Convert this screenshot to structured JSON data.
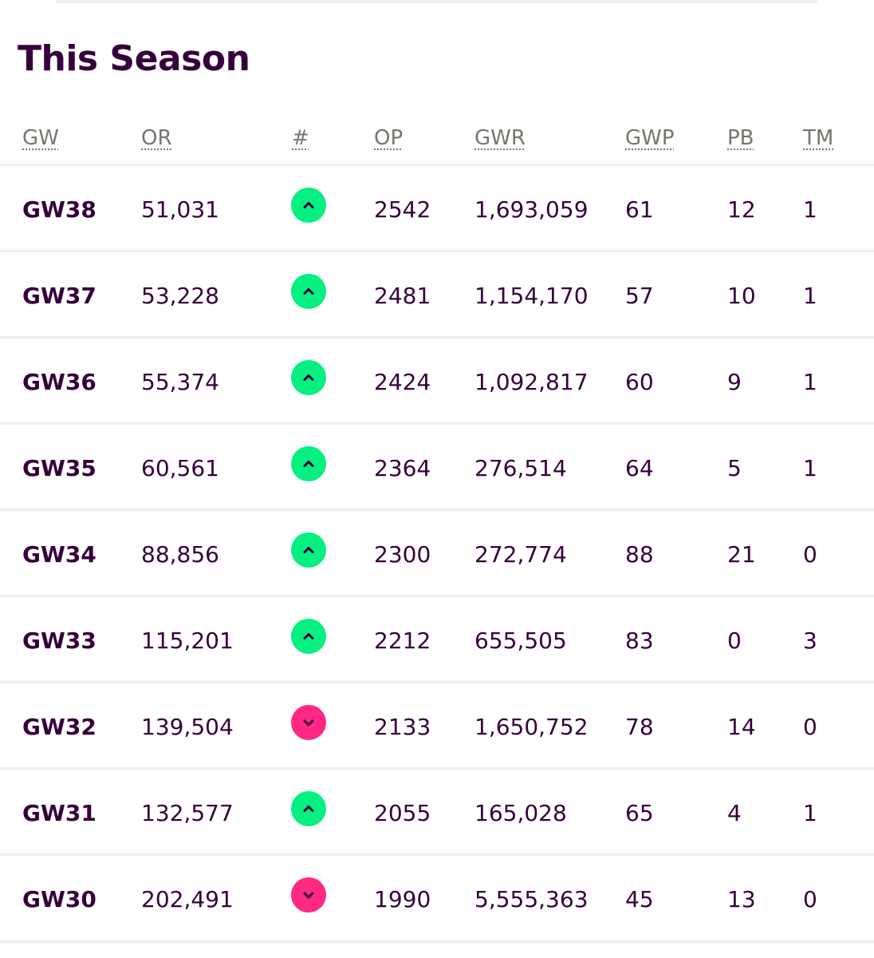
{
  "title": "This Season",
  "columns": {
    "gw": "GW",
    "or": "OR",
    "move": "#",
    "op": "OP",
    "gwr": "GWR",
    "gwp": "GWP",
    "pb": "PB",
    "tm": "TM"
  },
  "colors": {
    "text": "#37003c",
    "header": "#76766f",
    "up": "#05f080",
    "down": "#ff2882",
    "divider": "#efefef"
  },
  "rows": [
    {
      "gw": "GW38",
      "or": "51,031",
      "move": "up",
      "op": "2542",
      "gwr": "1,693,059",
      "gwp": "61",
      "pb": "12",
      "tm": "1"
    },
    {
      "gw": "GW37",
      "or": "53,228",
      "move": "up",
      "op": "2481",
      "gwr": "1,154,170",
      "gwp": "57",
      "pb": "10",
      "tm": "1"
    },
    {
      "gw": "GW36",
      "or": "55,374",
      "move": "up",
      "op": "2424",
      "gwr": "1,092,817",
      "gwp": "60",
      "pb": "9",
      "tm": "1"
    },
    {
      "gw": "GW35",
      "or": "60,561",
      "move": "up",
      "op": "2364",
      "gwr": "276,514",
      "gwp": "64",
      "pb": "5",
      "tm": "1"
    },
    {
      "gw": "GW34",
      "or": "88,856",
      "move": "up",
      "op": "2300",
      "gwr": "272,774",
      "gwp": "88",
      "pb": "21",
      "tm": "0"
    },
    {
      "gw": "GW33",
      "or": "115,201",
      "move": "up",
      "op": "2212",
      "gwr": "655,505",
      "gwp": "83",
      "pb": "0",
      "tm": "3"
    },
    {
      "gw": "GW32",
      "or": "139,504",
      "move": "down",
      "op": "2133",
      "gwr": "1,650,752",
      "gwp": "78",
      "pb": "14",
      "tm": "0"
    },
    {
      "gw": "GW31",
      "or": "132,577",
      "move": "up",
      "op": "2055",
      "gwr": "165,028",
      "gwp": "65",
      "pb": "4",
      "tm": "1"
    },
    {
      "gw": "GW30",
      "or": "202,491",
      "move": "down",
      "op": "1990",
      "gwr": "5,555,363",
      "gwp": "45",
      "pb": "13",
      "tm": "0"
    }
  ]
}
